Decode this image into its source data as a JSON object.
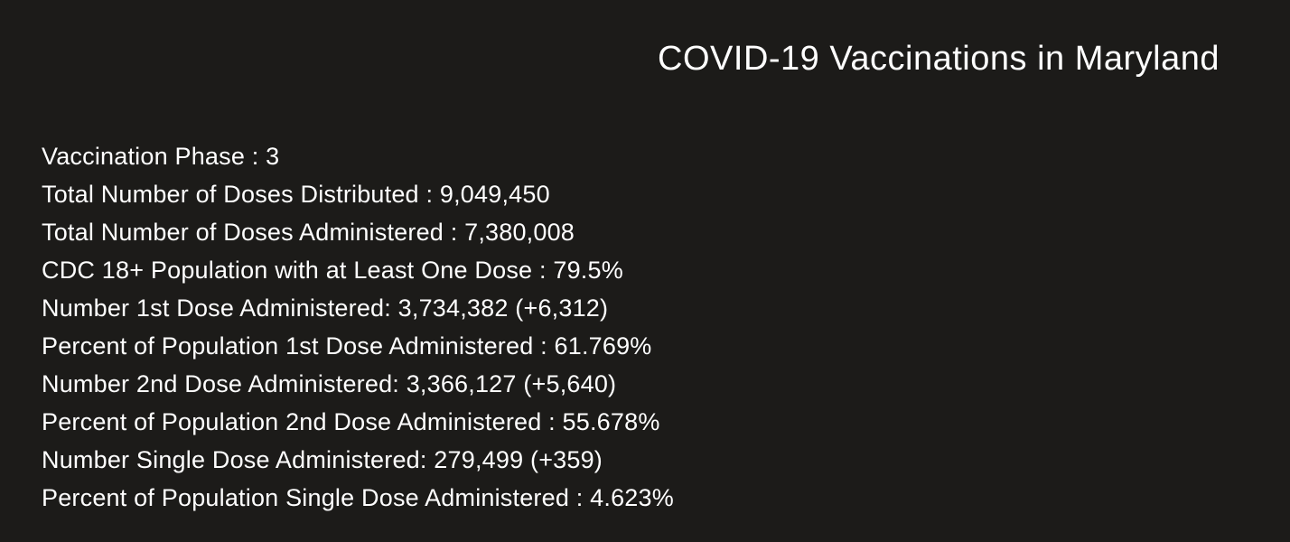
{
  "colors": {
    "background": "#1c1b19",
    "text": "#ffffff"
  },
  "header": {
    "title": "COVID-19 Vaccinations in Maryland"
  },
  "stats": {
    "lines": [
      "Vaccination Phase : 3",
      "Total Number of Doses Distributed : 9,049,450",
      "Total Number of Doses Administered : 7,380,008",
      "CDC 18+ Population with at Least One Dose : 79.5%",
      "Number 1st Dose Administered: 3,734,382 (+6,312)",
      "Percent of Population 1st Dose Administered : 61.769%",
      "Number 2nd Dose Administered: 3,366,127 (+5,640)",
      "Percent of Population 2nd Dose Administered : 55.678%",
      "Number Single Dose Administered: 279,499 (+359)",
      "Percent of Population Single Dose Administered : 4.623%"
    ]
  }
}
